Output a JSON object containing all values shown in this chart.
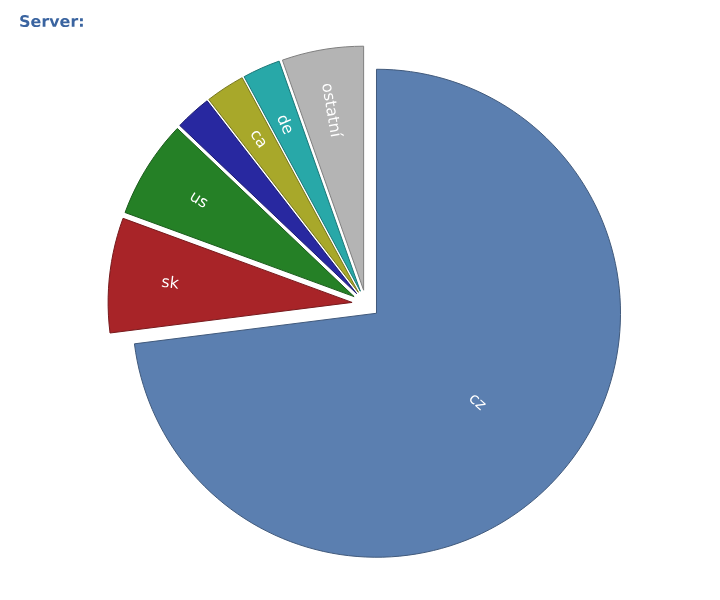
{
  "chart_data": {
    "type": "pie",
    "title": "Server:",
    "categories": [
      "cz",
      "sk",
      "us",
      null,
      "ca",
      "de",
      "ostatní"
    ],
    "values": [
      73,
      7.6,
      6.5,
      2.4,
      2.6,
      2.5,
      5.4
    ],
    "colors": [
      "#5b7fb0",
      "#a82428",
      "#258026",
      "#2828a0",
      "#a8a82a",
      "#28a8a8",
      "#b4b4b4"
    ]
  }
}
